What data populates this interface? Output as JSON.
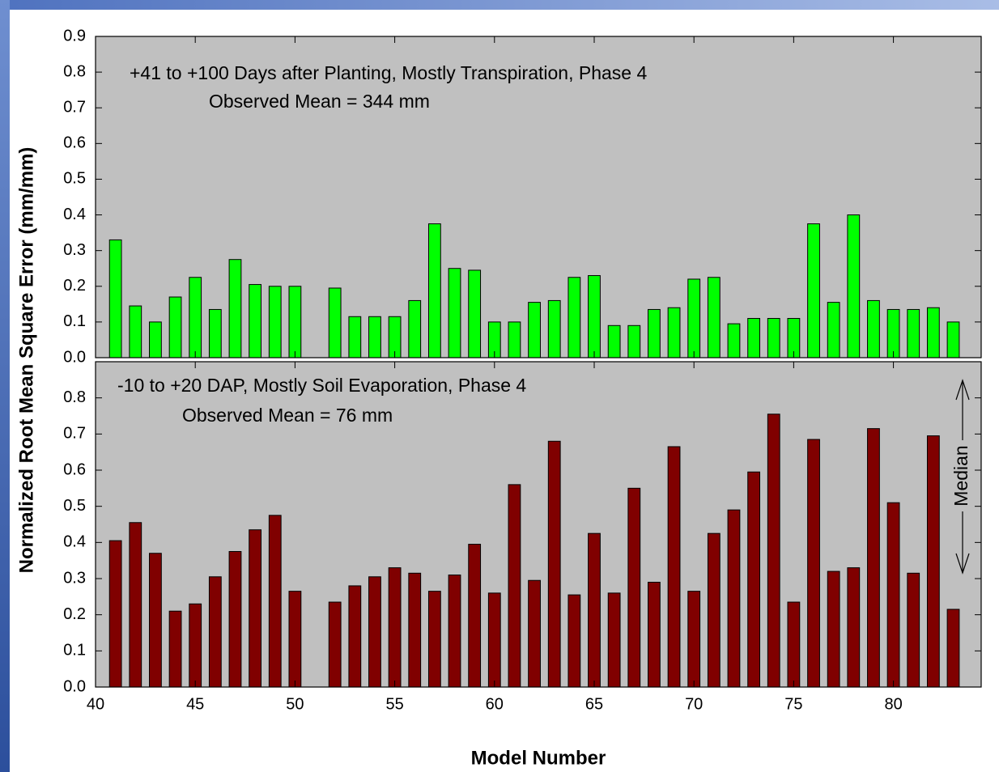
{
  "chart_data": [
    {
      "type": "bar",
      "ylabel": "Normalized Root Mean Square Error (mm/mm)",
      "annotations": [
        "+41 to +100 Days after Planting, Mostly Transpiration, Phase 4",
        "Observed Mean = 344 mm"
      ],
      "x": [
        41,
        42,
        43,
        44,
        45,
        46,
        47,
        48,
        49,
        50,
        52,
        53,
        54,
        55,
        56,
        57,
        58,
        59,
        60,
        61,
        62,
        63,
        64,
        65,
        66,
        67,
        68,
        69,
        70,
        71,
        72,
        73,
        74,
        75,
        76,
        77,
        78,
        79,
        80,
        81,
        82,
        83
      ],
      "values": [
        0.33,
        0.145,
        0.1,
        0.17,
        0.225,
        0.135,
        0.275,
        0.205,
        0.2,
        0.2,
        0.195,
        0.115,
        0.115,
        0.115,
        0.16,
        0.375,
        0.25,
        0.245,
        0.1,
        0.1,
        0.155,
        0.16,
        0.225,
        0.23,
        0.09,
        0.09,
        0.135,
        0.14,
        0.22,
        0.225,
        0.095,
        0.11,
        0.11,
        0.11,
        0.375,
        0.155,
        0.4,
        0.16,
        0.135,
        0.135,
        0.14,
        0.1
      ],
      "color": "#00ff00",
      "xlim": [
        40,
        84.4
      ],
      "ylim": [
        0,
        0.9
      ],
      "yticks": [
        {
          "value": 0,
          "label": "0.0"
        },
        0.1,
        0.2,
        0.3,
        0.4,
        0.5,
        0.6,
        0.7,
        0.8,
        0.9
      ]
    },
    {
      "type": "bar",
      "xlabel": "Model Number",
      "annotations": [
        "-10 to +20 DAP, Mostly Soil Evaporation, Phase 4",
        "Observed Mean = 76 mm",
        "Median"
      ],
      "x": [
        41,
        42,
        43,
        44,
        45,
        46,
        47,
        48,
        49,
        50,
        52,
        53,
        54,
        55,
        56,
        57,
        58,
        59,
        60,
        61,
        62,
        63,
        64,
        65,
        66,
        67,
        68,
        69,
        70,
        71,
        72,
        73,
        74,
        75,
        76,
        77,
        78,
        79,
        80,
        81,
        82,
        83
      ],
      "values": [
        0.405,
        0.455,
        0.37,
        0.21,
        0.23,
        0.305,
        0.375,
        0.435,
        0.475,
        0.265,
        0.235,
        0.28,
        0.305,
        0.33,
        0.315,
        0.265,
        0.31,
        0.395,
        0.26,
        0.56,
        0.295,
        0.68,
        0.255,
        0.425,
        0.26,
        0.55,
        0.29,
        0.665,
        0.265,
        0.425,
        0.49,
        0.595,
        0.755,
        0.235,
        0.685,
        0.32,
        0.33,
        0.715,
        0.51,
        0.315,
        0.695,
        0.215
      ],
      "color": "#800000",
      "xlim": [
        40,
        84.4
      ],
      "xticks": [
        40,
        45,
        50,
        55,
        60,
        65,
        70,
        75,
        80
      ],
      "ylim": [
        0,
        0.9
      ],
      "yticks": [
        {
          "value": 0,
          "label": "0.0"
        },
        0.1,
        0.2,
        0.3,
        0.4,
        0.5,
        0.6,
        0.7,
        0.8
      ]
    }
  ]
}
